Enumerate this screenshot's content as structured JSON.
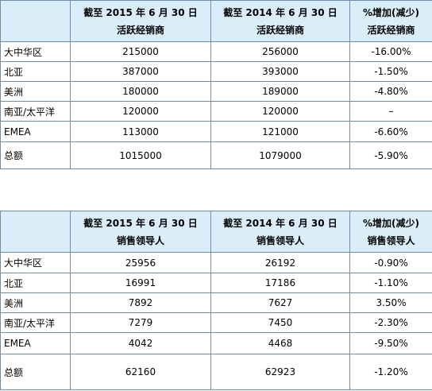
{
  "tables": [
    {
      "columns": [
        [
          "截至 2015 年 6 月 30 日",
          "活跃经销商"
        ],
        [
          "截至 2014 年 6 月 30 日",
          "活跃经销商"
        ],
        [
          "%增加(减少)",
          "活跃经销商"
        ]
      ],
      "rows": [
        [
          "大中华区",
          "215000",
          "256000",
          "-16.00%"
        ],
        [
          "北亚",
          "387000",
          "393000",
          "-1.50%"
        ],
        [
          "美洲",
          "180000",
          "189000",
          "-4.80%"
        ],
        [
          "南亚/太平洋",
          "120000",
          "120000",
          "–"
        ],
        [
          "EMEA",
          "113000",
          "121000",
          "-6.60%"
        ],
        [
          "总额",
          "1015000",
          "1079000",
          "-5.90%"
        ]
      ]
    },
    {
      "columns": [
        [
          "截至 2015 年 6 月 30 日",
          "销售领导人"
        ],
        [
          "截至 2014 年 6 月 30 日",
          "销售领导人"
        ],
        [
          "%增加(减少)",
          "销售领导人"
        ]
      ],
      "rows": [
        [
          "大中华区",
          "25956",
          "26192",
          "-0.90%"
        ],
        [
          "北亚",
          "16991",
          "17186",
          "-1.10%"
        ],
        [
          "美洲",
          "7892",
          "7627",
          "3.50%"
        ],
        [
          "南亚/太平洋",
          "7279",
          "7450",
          "-2.30%"
        ],
        [
          "EMEA",
          "4042",
          "4468",
          "-9.50%"
        ],
        [
          "总额",
          "62160",
          "62923",
          "-1.20%"
        ]
      ]
    }
  ]
}
